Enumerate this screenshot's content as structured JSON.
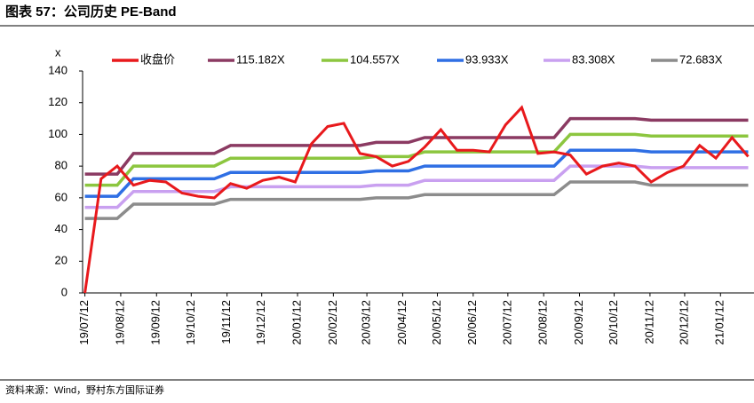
{
  "chart_data": {
    "type": "line",
    "title": "图表 57：公司历史 PE-Band",
    "y_label": "x",
    "source": "资料来源：Wind，野村东方国际证券",
    "x": [
      "19/07/12",
      "19/07/26",
      "19/08/09",
      "19/08/23",
      "19/09/06",
      "19/09/20",
      "19/10/04",
      "19/10/18",
      "19/11/01",
      "19/11/15",
      "19/11/29",
      "19/12/13",
      "19/12/27",
      "20/01/10",
      "20/01/24",
      "20/02/07",
      "20/02/21",
      "20/03/06",
      "20/03/20",
      "20/04/03",
      "20/04/17",
      "20/05/01",
      "20/05/15",
      "20/05/29",
      "20/06/12",
      "20/06/26",
      "20/07/10",
      "20/07/24",
      "20/08/07",
      "20/08/21",
      "20/09/04",
      "20/09/18",
      "20/10/02",
      "20/10/16",
      "20/10/30",
      "20/11/13",
      "20/11/27",
      "20/12/11",
      "20/12/25",
      "21/01/08",
      "21/01/22",
      "21/02/05"
    ],
    "xlim": [
      "19/07/10",
      "21/02/10"
    ],
    "xticks": [
      "19/07/12",
      "19/08/12",
      "19/09/12",
      "19/10/12",
      "19/11/12",
      "19/12/12",
      "20/01/12",
      "20/02/12",
      "20/03/12",
      "20/04/12",
      "20/05/12",
      "20/06/12",
      "20/07/12",
      "20/08/12",
      "20/09/12",
      "20/10/12",
      "20/11/12",
      "20/12/12",
      "21/01/12"
    ],
    "ylim": [
      0,
      140
    ],
    "yticks": [
      0,
      20,
      40,
      60,
      80,
      100,
      120,
      140
    ],
    "series": [
      {
        "name": "收盘价",
        "color": "#e8191c",
        "values": [
          0,
          72,
          80,
          68,
          71,
          70,
          63,
          61,
          60,
          69,
          66,
          71,
          73,
          70,
          94,
          105,
          107,
          88,
          86,
          80,
          83,
          92,
          103,
          90,
          90,
          89,
          106,
          117,
          88,
          89,
          87,
          75,
          80,
          82,
          80,
          70,
          76,
          80,
          93,
          85,
          98,
          86
        ]
      },
      {
        "name": "115.182X",
        "color": "#8b3a62",
        "values": [
          75,
          75,
          75,
          88,
          88,
          88,
          88,
          88,
          88,
          93,
          93,
          93,
          93,
          93,
          93,
          93,
          93,
          93,
          95,
          95,
          95,
          98,
          98,
          98,
          98,
          98,
          98,
          98,
          98,
          98,
          110,
          110,
          110,
          110,
          110,
          109,
          109,
          109,
          109,
          109,
          109,
          109
        ]
      },
      {
        "name": "104.557X",
        "color": "#8cc63f",
        "values": [
          68,
          68,
          68,
          80,
          80,
          80,
          80,
          80,
          80,
          85,
          85,
          85,
          85,
          85,
          85,
          85,
          85,
          85,
          86,
          86,
          86,
          89,
          89,
          89,
          89,
          89,
          89,
          89,
          89,
          89,
          100,
          100,
          100,
          100,
          100,
          99,
          99,
          99,
          99,
          99,
          99,
          99
        ]
      },
      {
        "name": "93.933X",
        "color": "#2f6fe4",
        "values": [
          61,
          61,
          61,
          72,
          72,
          72,
          72,
          72,
          72,
          76,
          76,
          76,
          76,
          76,
          76,
          76,
          76,
          76,
          77,
          77,
          77,
          80,
          80,
          80,
          80,
          80,
          80,
          80,
          80,
          80,
          90,
          90,
          90,
          90,
          90,
          89,
          89,
          89,
          89,
          89,
          89,
          89
        ]
      },
      {
        "name": "83.308X",
        "color": "#c9a0f0",
        "values": [
          54,
          54,
          54,
          64,
          64,
          64,
          64,
          64,
          64,
          67,
          67,
          67,
          67,
          67,
          67,
          67,
          67,
          67,
          68,
          68,
          68,
          71,
          71,
          71,
          71,
          71,
          71,
          71,
          71,
          71,
          80,
          80,
          80,
          80,
          80,
          79,
          79,
          79,
          79,
          79,
          79,
          79
        ]
      },
      {
        "name": "72.683X",
        "color": "#8c8c8c",
        "values": [
          47,
          47,
          47,
          56,
          56,
          56,
          56,
          56,
          56,
          59,
          59,
          59,
          59,
          59,
          59,
          59,
          59,
          59,
          60,
          60,
          60,
          62,
          62,
          62,
          62,
          62,
          62,
          62,
          62,
          62,
          70,
          70,
          70,
          70,
          70,
          68,
          68,
          68,
          68,
          68,
          68,
          68
        ]
      }
    ]
  }
}
